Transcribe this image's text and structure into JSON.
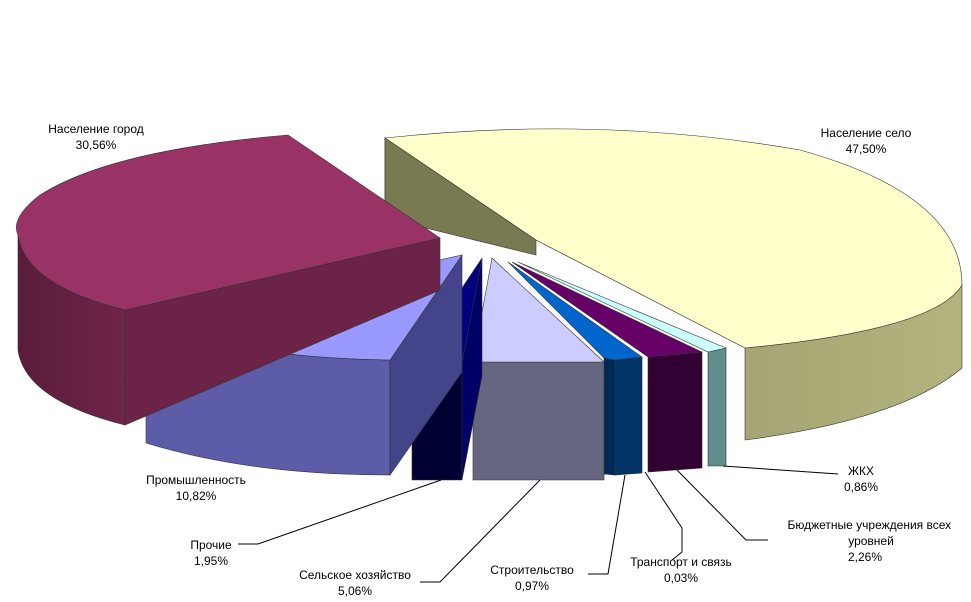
{
  "chart_data": {
    "type": "pie",
    "three_d": true,
    "exploded": true,
    "title": "",
    "slices": [
      {
        "name": "Население село",
        "value_label": "47,50%",
        "value": 47.5,
        "color": "#FFFFCC"
      },
      {
        "name": "ЖКХ",
        "value_label": "0,86%",
        "value": 0.86,
        "color": "#CCFFFF"
      },
      {
        "name": "Бюджетные учреждения всех уровней",
        "value_label": "2,26%",
        "value": 2.26,
        "color": "#660066"
      },
      {
        "name": "Транспорт и связь",
        "value_label": "0,03%",
        "value": 0.03,
        "color": "#0066CC"
      },
      {
        "name": "Строительство",
        "value_label": "0,97%",
        "value": 0.97,
        "color": "#CCCCFF"
      },
      {
        "name": "Сельское хозяйство",
        "value_label": "5,06%",
        "value": 5.06,
        "color": "#000080"
      },
      {
        "name": "Прочие",
        "value_label": "1,95%",
        "value": 1.95,
        "color": "#000080"
      },
      {
        "name": "Промышленность",
        "value_label": "10,82%",
        "value": 10.82,
        "color": "#9999FF"
      },
      {
        "name": "Население город",
        "value_label": "30,56%",
        "value": 30.56,
        "color": "#993366"
      }
    ]
  }
}
